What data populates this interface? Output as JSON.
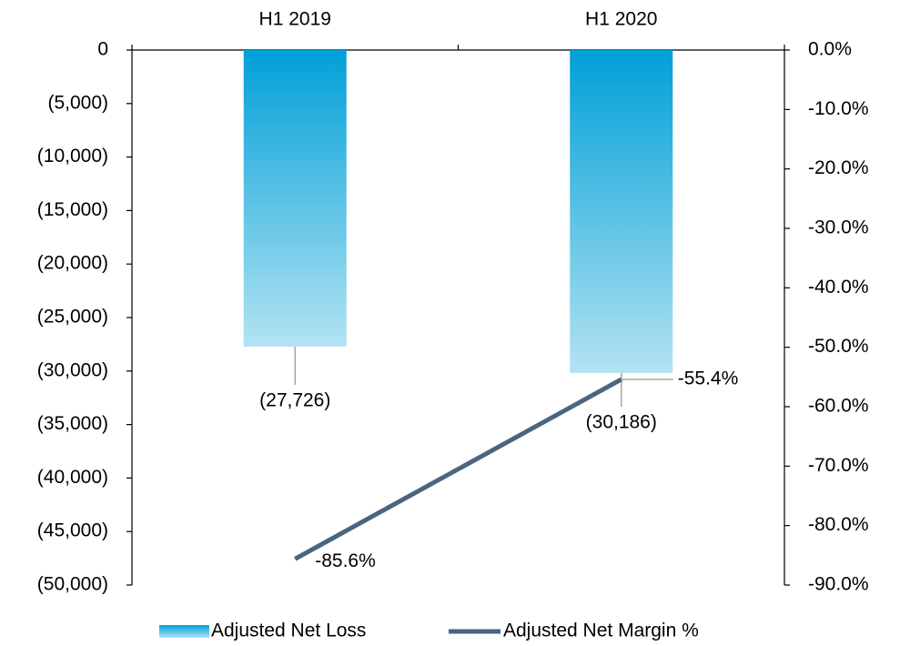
{
  "chart_data": {
    "type": "bar_line",
    "categories": [
      "H1 2019",
      "H1 2020"
    ],
    "series": [
      {
        "name": "Adjusted Net Loss",
        "type": "bar",
        "color": "#00a0d8",
        "values": [
          -27726,
          -30186
        ],
        "value_labels": [
          "(27,726)",
          "(30,186)"
        ]
      },
      {
        "name": "Adjusted Net Margin %",
        "type": "line",
        "axis": "y2",
        "color": "#4a6580",
        "values": [
          -85.6,
          -55.4
        ],
        "value_labels": [
          "-85.6%",
          "-55.4%"
        ]
      }
    ],
    "ylim": [
      0,
      -50000
    ],
    "yticks": [
      0,
      {
        "value": -5000,
        "label": "(5,000)"
      },
      {
        "value": -10000,
        "label": "(10,000)"
      },
      {
        "value": -15000,
        "label": "(15,000)"
      },
      {
        "value": -20000,
        "label": "(20,000)"
      },
      {
        "value": -25000,
        "label": "(25,000)"
      },
      {
        "value": -30000,
        "label": "(30,000)"
      },
      {
        "value": -35000,
        "label": "(35,000)"
      },
      {
        "value": -40000,
        "label": "(40,000)"
      },
      {
        "value": -45000,
        "label": "(45,000)"
      },
      {
        "value": -50000,
        "label": "(50,000)"
      }
    ],
    "y2lim": [
      0,
      -90
    ],
    "y2ticks": [
      {
        "value": 0,
        "label": "0.0%"
      },
      {
        "value": -10,
        "label": "-10.0%"
      },
      {
        "value": -20,
        "label": "-20.0%"
      },
      {
        "value": -30,
        "label": "-30.0%"
      },
      {
        "value": -40,
        "label": "-40.0%"
      },
      {
        "value": -50,
        "label": "-50.0%"
      },
      {
        "value": -60,
        "label": "-60.0%"
      },
      {
        "value": -70,
        "label": "-70.0%"
      },
      {
        "value": -80,
        "label": "-80.0%"
      },
      {
        "value": -90,
        "label": "-90.0%"
      }
    ],
    "legend": "bottom"
  }
}
